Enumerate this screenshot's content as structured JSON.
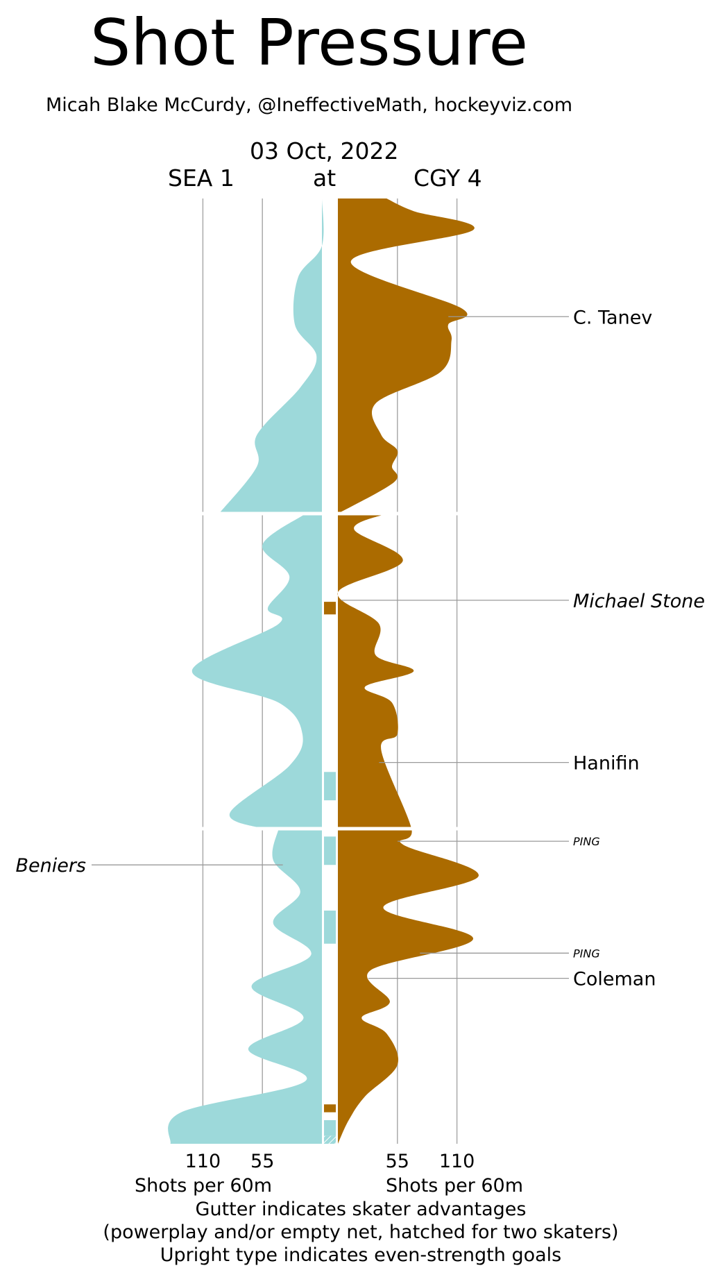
{
  "header": {
    "title": "Shot Pressure",
    "credit": "Micah Blake McCurdy, @IneffectiveMath, hockeyviz.com",
    "date": "03 Oct, 2022",
    "away_label": "SEA 1",
    "at_label": "at",
    "home_label": "CGY 4"
  },
  "colors": {
    "away": "#9dd9da",
    "home": "#ab6b00",
    "grid": "#aaaaaa",
    "leader": "#999999"
  },
  "chart_data": {
    "type": "area",
    "orientation": "vertical-mirrored",
    "units": "Shots per 60m",
    "periods": 3,
    "x_ticks_away": [
      110,
      55
    ],
    "x_ticks_home": [
      55,
      110
    ],
    "x_range": [
      0,
      130
    ],
    "game_minutes": [
      0,
      60
    ],
    "away_series": {
      "name": "SEA 1",
      "points": [
        [
          0,
          0
        ],
        [
          3,
          0
        ],
        [
          5,
          22
        ],
        [
          8,
          25
        ],
        [
          10,
          5
        ],
        [
          12,
          20
        ],
        [
          15,
          60
        ],
        [
          17,
          60
        ],
        [
          20,
          95
        ],
        [
          20,
          15
        ],
        [
          22,
          55
        ],
        [
          24,
          30
        ],
        [
          26,
          50
        ],
        [
          27,
          40
        ],
        [
          30,
          120
        ],
        [
          32,
          40
        ],
        [
          34,
          18
        ],
        [
          36,
          30
        ],
        [
          39,
          85
        ],
        [
          40,
          55
        ],
        [
          40,
          40
        ],
        [
          42,
          45
        ],
        [
          44,
          20
        ],
        [
          46,
          45
        ],
        [
          48,
          10
        ],
        [
          50,
          65
        ],
        [
          52,
          17
        ],
        [
          54,
          68
        ],
        [
          56,
          15
        ],
        [
          58,
          130
        ],
        [
          60,
          140
        ]
      ]
    },
    "home_series": {
      "name": "CGY 4",
      "points": [
        [
          0,
          45
        ],
        [
          0.8,
          70
        ],
        [
          2,
          125
        ],
        [
          4,
          12
        ],
        [
          7,
          115
        ],
        [
          8,
          102
        ],
        [
          9,
          105
        ],
        [
          11,
          95
        ],
        [
          13,
          35
        ],
        [
          15,
          40
        ],
        [
          16,
          55
        ],
        [
          17,
          50
        ],
        [
          18,
          52
        ],
        [
          20,
          0
        ],
        [
          20,
          45
        ],
        [
          21,
          15
        ],
        [
          23,
          60
        ],
        [
          25,
          0
        ],
        [
          27,
          38
        ],
        [
          29,
          35
        ],
        [
          30,
          70
        ],
        [
          31,
          25
        ],
        [
          32,
          50
        ],
        [
          34,
          55
        ],
        [
          35,
          40
        ],
        [
          40,
          68
        ],
        [
          41,
          60
        ],
        [
          43,
          130
        ],
        [
          45,
          42
        ],
        [
          47,
          125
        ],
        [
          49,
          30
        ],
        [
          51,
          48
        ],
        [
          52,
          22
        ],
        [
          53,
          45
        ],
        [
          55,
          55
        ],
        [
          57,
          25
        ],
        [
          58.5,
          10
        ],
        [
          60,
          0
        ]
      ]
    },
    "gutter": [
      {
        "team": "home",
        "start": 25.6,
        "end": 26.4,
        "hatched": false
      },
      {
        "team": "away",
        "start": 36.4,
        "end": 38.2,
        "hatched": false
      },
      {
        "team": "away",
        "start": 40.5,
        "end": 42.3,
        "hatched": false
      },
      {
        "team": "away",
        "start": 45.2,
        "end": 47.3,
        "hatched": false
      },
      {
        "team": "home",
        "start": 57.5,
        "end": 58.0,
        "hatched": false
      },
      {
        "team": "away",
        "start": 58.5,
        "end": 59.5,
        "hatched": false
      },
      {
        "team": "away",
        "start": 59.5,
        "end": 60.0,
        "hatched": true
      }
    ],
    "goals": [
      {
        "team": "home",
        "minute": 7.5,
        "player": "C. Tanev",
        "style": "upright",
        "size": "normal"
      },
      {
        "team": "home",
        "minute": 25.5,
        "player": "Michael Stone",
        "style": "italic",
        "size": "normal"
      },
      {
        "team": "home",
        "minute": 35.8,
        "player": "Hanifin",
        "style": "upright",
        "size": "normal"
      },
      {
        "team": "home",
        "minute": 40.8,
        "player": "PING",
        "style": "italic",
        "size": "small"
      },
      {
        "team": "away",
        "minute": 42.3,
        "player": "Beniers",
        "style": "italic",
        "size": "normal"
      },
      {
        "team": "home",
        "minute": 47.9,
        "player": "PING",
        "style": "italic",
        "size": "small"
      },
      {
        "team": "home",
        "minute": 49.5,
        "player": "Coleman",
        "style": "upright",
        "size": "normal"
      }
    ],
    "xlabel_away": "Shots per 60m",
    "xlabel_home": "Shots per 60m"
  },
  "footer": {
    "line1": "Gutter indicates skater advantages",
    "line2": "(powerplay and/or empty net, hatched for two skaters)",
    "line3": "Upright type indicates even-strength goals"
  }
}
